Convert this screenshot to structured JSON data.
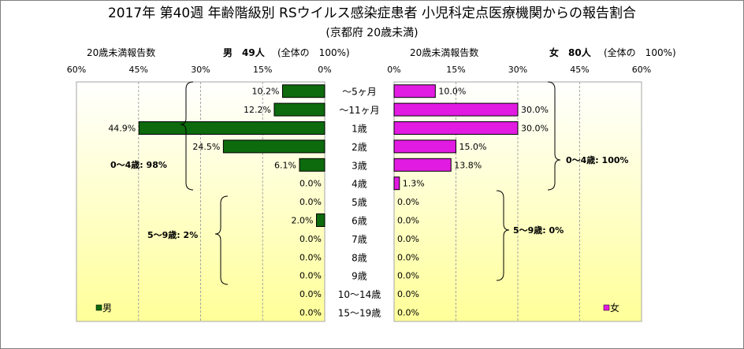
{
  "chart_data": {
    "type": "bar",
    "title": "2017年 第40週 年齢階級別 RSウイルス感染症患者 小児科定点医療機関からの報告割合",
    "subtitle": "(京都府 20歳未満)",
    "categories": [
      "～5ヶ月",
      "～11ヶ月",
      "1歳",
      "2歳",
      "3歳",
      "4歳",
      "5歳",
      "6歳",
      "7歳",
      "8歳",
      "9歳",
      "10～14歳",
      "15～19歳"
    ],
    "x_ticks": [
      "60%",
      "45%",
      "30%",
      "15%",
      "0%"
    ],
    "x_ticks_right": [
      "0%",
      "15%",
      "30%",
      "45%",
      "60%"
    ],
    "xlim": [
      0,
      60
    ],
    "series": [
      {
        "name": "男",
        "header_left": "20歳未満報告数",
        "header_count": "男　49人",
        "header_total": "(全体の　100%)",
        "values": [
          10.2,
          12.2,
          44.9,
          24.5,
          6.1,
          0.0,
          0.0,
          2.0,
          0.0,
          0.0,
          0.0,
          0.0,
          0.0
        ],
        "labels": [
          "10.2%",
          "12.2%",
          "44.9%",
          "24.5%",
          "6.1%",
          "0.0%",
          "0.0%",
          "2.0%",
          "0.0%",
          "0.0%",
          "0.0%",
          "0.0%",
          "0.0%"
        ],
        "color": "#0d6a0d"
      },
      {
        "name": "女",
        "header_left": "20歳未満報告数",
        "header_count": "女　80人",
        "header_total": "(全体の　100%)",
        "values": [
          10.0,
          30.0,
          30.0,
          15.0,
          13.8,
          1.3,
          0.0,
          0.0,
          0.0,
          0.0,
          0.0,
          0.0,
          0.0
        ],
        "labels": [
          "10.0%",
          "30.0%",
          "30.0%",
          "15.0%",
          "13.8%",
          "1.3%",
          "0.0%",
          "0.0%",
          "0.0%",
          "0.0%",
          "0.0%",
          "0.0%",
          "0.0%"
        ],
        "color": "#e11be1"
      }
    ],
    "group_labels": {
      "male_0_4": "0～4歳: 98%",
      "male_5_9": "5～9歳: 2%",
      "female_0_4": "0～4歳: 100%",
      "female_5_9": "5～9歳: 0%"
    },
    "legend": [
      "男",
      "女"
    ],
    "colors": {
      "male": "#0d6a0d",
      "female": "#e11be1",
      "plot_top": "#ffffff",
      "plot_bottom": "#ffff99",
      "grid": "#a6a6a6"
    }
  }
}
